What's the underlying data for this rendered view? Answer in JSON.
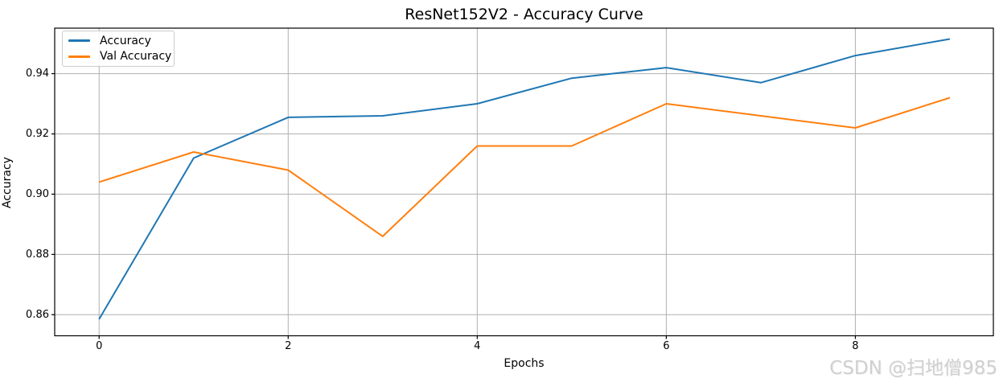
{
  "figure": {
    "watermark": "CSDN @扫地僧985"
  },
  "chart_data": {
    "type": "line",
    "title": "ResNet152V2 - Accuracy Curve",
    "xlabel": "Epochs",
    "ylabel": "Accuracy",
    "x": [
      0,
      1,
      2,
      3,
      4,
      5,
      6,
      7,
      8,
      9
    ],
    "series": [
      {
        "name": "Accuracy",
        "color": "#1f77b4",
        "values": [
          0.8585,
          0.912,
          0.9255,
          0.926,
          0.93,
          0.9385,
          0.942,
          0.937,
          0.946,
          0.9515
        ]
      },
      {
        "name": "Val Accuracy",
        "color": "#ff7f0e",
        "values": [
          0.904,
          0.914,
          0.908,
          0.886,
          0.916,
          0.916,
          0.93,
          0.926,
          0.922,
          0.932
        ]
      }
    ],
    "xlim": [
      -0.47,
      9.46
    ],
    "ylim": [
      0.853,
      0.9551
    ],
    "xticks": {
      "values": [
        0,
        2,
        4,
        6,
        8
      ],
      "labels": [
        "0",
        "2",
        "4",
        "6",
        "8"
      ]
    },
    "yticks": {
      "values": [
        0.86,
        0.88,
        0.9,
        0.92,
        0.94
      ],
      "labels": [
        "0.86",
        "0.88",
        "0.90",
        "0.92",
        "0.94"
      ]
    },
    "grid": true,
    "legend_position": "upper left",
    "colors": {
      "grid": "#b0b0b0",
      "spine": "#000000",
      "watermark": "#d0d0d0"
    }
  }
}
